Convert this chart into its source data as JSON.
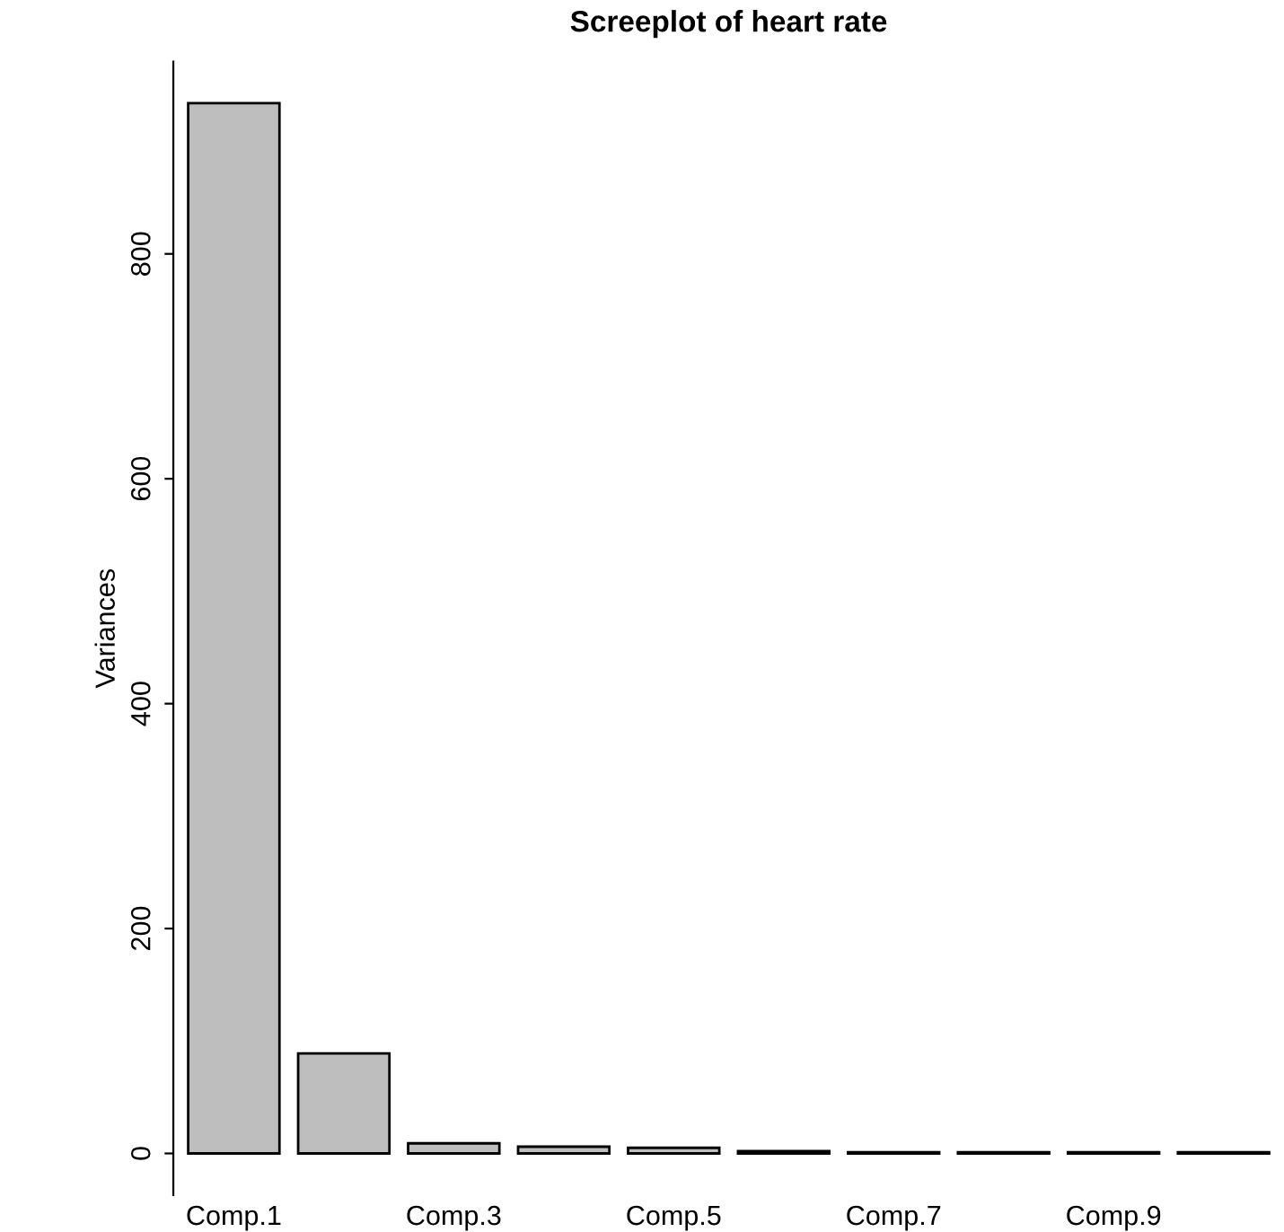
{
  "chart_data": {
    "type": "bar",
    "title": "Screeplot of heart rate",
    "ylabel": "Variances",
    "categories": [
      "Comp.1",
      null,
      "Comp.3",
      null,
      "Comp.5",
      null,
      "Comp.7",
      null,
      "Comp.9",
      null
    ],
    "values": [
      934,
      89,
      9,
      6,
      5,
      2,
      1,
      1,
      1,
      1
    ],
    "color": "#bebebe",
    "ylim": [
      -37,
      971
    ],
    "yticks": [
      0,
      200,
      400,
      600,
      800
    ],
    "grid": false
  }
}
